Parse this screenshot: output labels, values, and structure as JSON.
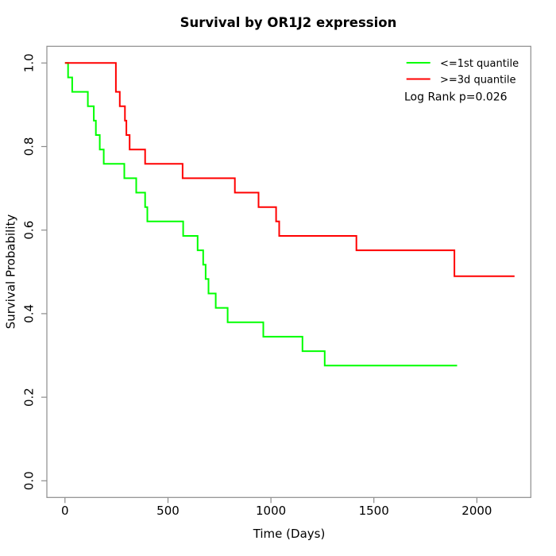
{
  "chart_data": {
    "type": "line",
    "subtype": "kaplan_meier_step",
    "title": "Survival by OR1J2 expression",
    "xlabel": "Time (Days)",
    "ylabel": "Survival Probability",
    "xlim": [
      -88,
      2262
    ],
    "ylim": [
      -0.04,
      1.04
    ],
    "xticks": [
      0,
      500,
      1000,
      1500,
      2000
    ],
    "xtick_labels": [
      "0",
      "500",
      "1000",
      "1500",
      "2000"
    ],
    "yticks": [
      0,
      0.2,
      0.4,
      0.6,
      0.8,
      1.0
    ],
    "ytick_labels": [
      "0.0",
      "0.2",
      "0.4",
      "0.6",
      "0.8",
      "1.0"
    ],
    "grid": false,
    "legend_position": "topright",
    "annotation": "Log Rank p=0.026",
    "series": [
      {
        "name": "<=1st quantile",
        "color": "#00ff00",
        "points": [
          [
            0,
            1.0
          ],
          [
            15,
            0.9655
          ],
          [
            35,
            0.931
          ],
          [
            111,
            0.8966
          ],
          [
            140,
            0.8621
          ],
          [
            150,
            0.8276
          ],
          [
            169,
            0.7931
          ],
          [
            188,
            0.7586
          ],
          [
            288,
            0.7241
          ],
          [
            346,
            0.6897
          ],
          [
            389,
            0.6552
          ],
          [
            400,
            0.6207
          ],
          [
            574,
            0.5862
          ],
          [
            644,
            0.5517
          ],
          [
            671,
            0.5172
          ],
          [
            683,
            0.4828
          ],
          [
            697,
            0.4483
          ],
          [
            732,
            0.4138
          ],
          [
            790,
            0.3793
          ],
          [
            963,
            0.3448
          ],
          [
            1153,
            0.3103
          ],
          [
            1261,
            0.2759
          ],
          [
            1904,
            0.2759
          ]
        ]
      },
      {
        "name": ">=3d quantile",
        "color": "#ff0000",
        "points": [
          [
            0,
            1.0
          ],
          [
            247,
            0.931
          ],
          [
            266,
            0.8966
          ],
          [
            291,
            0.8621
          ],
          [
            298,
            0.8276
          ],
          [
            314,
            0.7931
          ],
          [
            389,
            0.7586
          ],
          [
            571,
            0.7241
          ],
          [
            825,
            0.6897
          ],
          [
            940,
            0.6552
          ],
          [
            1025,
            0.6207
          ],
          [
            1040,
            0.5862
          ],
          [
            1415,
            0.5517
          ],
          [
            1891,
            0.4897
          ],
          [
            2183,
            0.4897
          ]
        ]
      }
    ]
  }
}
